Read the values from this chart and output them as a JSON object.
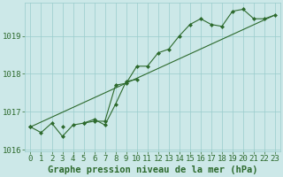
{
  "x": [
    0,
    1,
    2,
    3,
    4,
    5,
    6,
    7,
    8,
    9,
    10,
    11,
    12,
    13,
    14,
    15,
    16,
    17,
    18,
    19,
    20,
    21,
    22,
    23
  ],
  "line1": [
    1016.6,
    1016.45,
    1016.7,
    1016.35,
    1016.65,
    1016.7,
    1016.75,
    1016.75,
    1017.7,
    1017.75,
    1018.2,
    1018.2,
    1018.55,
    1018.65,
    1019.0,
    1019.3,
    1019.45,
    1019.3,
    1019.25,
    1019.65,
    1019.7,
    1019.45,
    1019.45,
    1019.55
  ],
  "line2": [
    1016.6,
    null,
    null,
    1016.6,
    null,
    1016.7,
    1016.8,
    1016.65,
    1017.2,
    1017.8,
    1017.85,
    null,
    null,
    null,
    null,
    null,
    null,
    null,
    null,
    null,
    null,
    null,
    null,
    null
  ],
  "line3_x": [
    0,
    23
  ],
  "line3_y": [
    1016.6,
    1019.55
  ],
  "ylim": [
    1015.95,
    1019.88
  ],
  "xlim": [
    -0.5,
    23.5
  ],
  "yticks": [
    1016,
    1017,
    1018,
    1019
  ],
  "xticks": [
    0,
    1,
    2,
    3,
    4,
    5,
    6,
    7,
    8,
    9,
    10,
    11,
    12,
    13,
    14,
    15,
    16,
    17,
    18,
    19,
    20,
    21,
    22,
    23
  ],
  "xlabel": "Graphe pression niveau de la mer (hPa)",
  "bg_color": "#cce8e8",
  "grid_color": "#99cccc",
  "line_color": "#2d6a2d",
  "title_color": "#2d6a2d",
  "font_size_xlabel": 7.5,
  "font_size_ticks": 6.5,
  "marker": "D",
  "marker_size": 2.0,
  "line_width": 0.8
}
